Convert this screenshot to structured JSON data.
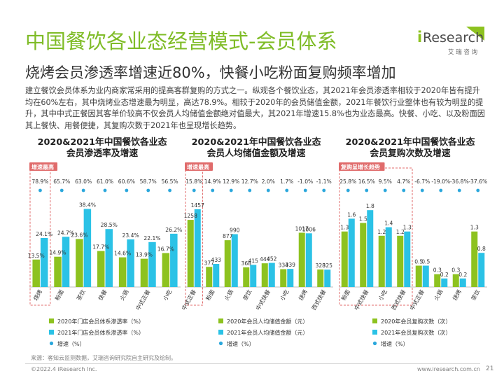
{
  "header": {
    "title": "中国餐饮各业态经营模式-会员体系",
    "subtitle": "烧烤会员渗透率增速近80%，快餐小吃粉面复购频率增加",
    "intro": "建立餐饮会员体系为业内商家常采用的提高客群复购的方式之一。纵观各个餐饮业态，其2021年会员渗透率相较于2020年皆有提升均在60%左右，其中烧烤业态增速最为明显，高达78.9%。相较于2020年的会员储值金额，2021年餐饮行业整体也有较为明显的提升，其中中式正餐因其客单价较高不仅会员人均储值金额绝对值最大，其2021年增速15.8%也为业态最高。快餐、小吃、以及粉面因其上餐快、用餐便捷，其复购次数于2021年也呈现增长趋势。"
  },
  "logo": {
    "brand_i": "i",
    "brand_rest": "Research",
    "tagline": "艾 瑞 咨 询"
  },
  "colors": {
    "green": "#8dc21f",
    "blue": "#2bc2e6",
    "dot": "#2aa7dc",
    "highlight": "#e06b6b",
    "title": "#7fbc27"
  },
  "chart_data": [
    {
      "type": "bar",
      "title": "2020&2021年中国餐饮各业态会员渗透率及增速",
      "title_lines": [
        "2020&2021年中国餐饮各业态",
        "会员渗透率及增速"
      ],
      "highlight_label": "增速最高",
      "categories": [
        "烧烤",
        "粉面",
        "茶饮",
        "快餐",
        "火锅",
        "中式正餐",
        "小吃"
      ],
      "series": [
        {
          "name": "2020年门店会员体系渗透率（%）",
          "values": [
            13.5,
            14.9,
            23.6,
            17.7,
            14.6,
            13.9,
            16.7
          ],
          "labels": [
            "13.5%",
            "14.9%",
            "23.6%",
            "17.7%",
            "14.6%",
            "13.9%",
            "16.7%"
          ]
        },
        {
          "name": "2021年门店会员体系渗透率（%）",
          "values": [
            24.1,
            24.7,
            38.4,
            28.5,
            23.4,
            22.1,
            26.2
          ],
          "labels": [
            "24.1%",
            "24.7%",
            "38.4%",
            "28.5%",
            "23.4%",
            "22.1%",
            "26.2%"
          ]
        }
      ],
      "growth": {
        "name": "增速（%）",
        "values": [
          78.9,
          65.7,
          63.0,
          61.0,
          60.6,
          58.7,
          56.5
        ],
        "labels": [
          "78.9%",
          "65.7%",
          "63.0%",
          "61.0%",
          "60.6%",
          "58.7%",
          "56.5%"
        ]
      },
      "ylim": [
        0,
        42
      ],
      "highlight_index": 0
    },
    {
      "type": "bar",
      "title": "2020&2021年中国餐饮各业态会员人均储值金额及增速",
      "title_lines": [
        "2020&2021年中国餐饮各业态",
        "会员人均储值金额及增速"
      ],
      "highlight_label": "增速最高",
      "categories": [
        "中式正餐",
        "粉面",
        "火锅",
        "茶饮",
        "中式快餐",
        "小吃",
        "烧烤",
        "西式快餐"
      ],
      "series": [
        {
          "name": "2020年会员人均储值金额（元）",
          "values": [
            1258,
            377,
            877,
            368,
            444,
            334,
            1017,
            328
          ],
          "labels": [
            "1258",
            "377",
            "877",
            "368",
            "444",
            "334",
            "1017",
            "328"
          ]
        },
        {
          "name": "2021年会员人均储值金额（元）",
          "values": [
            1457,
            433,
            990,
            415,
            452,
            339,
            1006,
            325
          ],
          "labels": [
            "1457",
            "433",
            "990",
            "415",
            "452",
            "339",
            "1006",
            "325"
          ]
        }
      ],
      "growth": {
        "name": "增速（%）",
        "values": [
          15.8,
          14.9,
          12.9,
          12.7,
          2.0,
          1.7,
          -1.0,
          -1.1
        ],
        "labels": [
          "15.8%",
          "14.9%",
          "12.9%",
          "12.7%",
          "2.0%",
          "1.7%",
          "-1.0%",
          "-1.1%"
        ]
      },
      "ylim": [
        0,
        1600
      ],
      "highlight_index": 0
    },
    {
      "type": "bar",
      "title": "2020&2021年中国餐饮各业态会员复购次数及增速",
      "title_lines": [
        "2020&2021年中国餐饮各业态",
        "会员复购次数及增速"
      ],
      "highlight_label": "复购呈增长趋势",
      "categories": [
        "粉面",
        "中式快餐",
        "小吃",
        "西式快餐",
        "中式正餐",
        "火锅",
        "烧烤",
        "茶饮"
      ],
      "series": [
        {
          "name": "2020年会员复购次数（次）",
          "values": [
            1.3,
            1.5,
            1.2,
            1.2,
            0.5,
            0.3,
            0.3,
            1.3
          ],
          "labels": [
            "1.3",
            "1.5",
            "1.2",
            "1.2",
            "0.5",
            "0.3",
            "0.3",
            "1.3"
          ]
        },
        {
          "name": "2021年会员复购次数（次）",
          "values": [
            1.6,
            1.8,
            1.4,
            1.3,
            0.5,
            0.2,
            0.2,
            0.8
          ],
          "labels": [
            "1.6",
            "1.8",
            "1.4",
            "1.3",
            "0.5",
            "0.2",
            "0.2",
            "0.8"
          ]
        }
      ],
      "growth": {
        "name": "增速（%）",
        "values": [
          25.8,
          16.5,
          9.5,
          4.7,
          -6.7,
          -19.0,
          -36.8,
          -37.6
        ],
        "labels": [
          "25.8%",
          "16.5%",
          "9.5%",
          "4.7%",
          "-6.7%",
          "-19.0%",
          "-36.8%",
          "-37.6%"
        ]
      },
      "ylim": [
        0,
        2.0
      ],
      "highlight_range": [
        0,
        3
      ]
    }
  ],
  "footer": {
    "source": "来源：客知云监测数据，艾瑞咨询研究院自主研究及绘制。",
    "copyright": "©2022.4 iResearch Inc.",
    "website": "www.iresearch.com.cn",
    "page": "21"
  }
}
